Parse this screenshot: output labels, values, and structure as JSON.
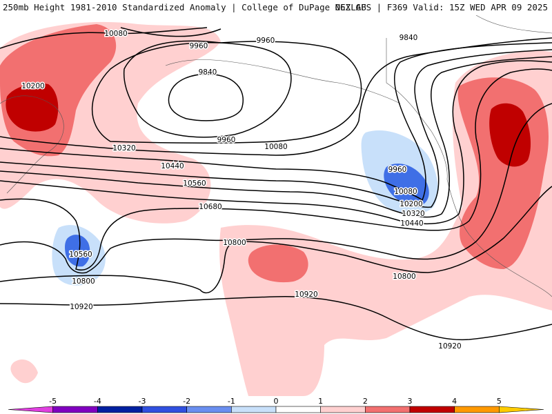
{
  "header": {
    "left": "250mb Height 1981-2010 Standardized Anomaly | College of DuPage NEXLAB",
    "right": "06Z GFS | F369 Valid: 15Z WED APR 09 2025"
  },
  "contour_labels": [
    {
      "text": "10080"
    },
    {
      "text": "10200"
    },
    {
      "text": "10320"
    },
    {
      "text": "10440"
    },
    {
      "text": "10560"
    },
    {
      "text": "10680"
    },
    {
      "text": "10560"
    },
    {
      "text": "10800"
    },
    {
      "text": "10920"
    },
    {
      "text": "9960"
    },
    {
      "text": "9960"
    },
    {
      "text": "9840"
    },
    {
      "text": "9960"
    },
    {
      "text": "10080"
    },
    {
      "text": "9840"
    },
    {
      "text": "9960"
    },
    {
      "text": "10080"
    },
    {
      "text": "10200"
    },
    {
      "text": "10320"
    },
    {
      "text": "10440"
    },
    {
      "text": "10800"
    },
    {
      "text": "10800"
    },
    {
      "text": "10920"
    },
    {
      "text": "10920"
    }
  ],
  "colorbar": {
    "ticks": [
      "-5",
      "-4",
      "-3",
      "-2",
      "-1",
      "0",
      "1",
      "2",
      "3",
      "4",
      "5"
    ],
    "colors": [
      "#e040e0",
      "#8000c0",
      "#0020a0",
      "#3050e0",
      "#6a8ef0",
      "#c8e0fa",
      "#ffffff",
      "#ffd0d0",
      "#f27070",
      "#c00000",
      "#ff9900",
      "#ffcc00"
    ]
  }
}
